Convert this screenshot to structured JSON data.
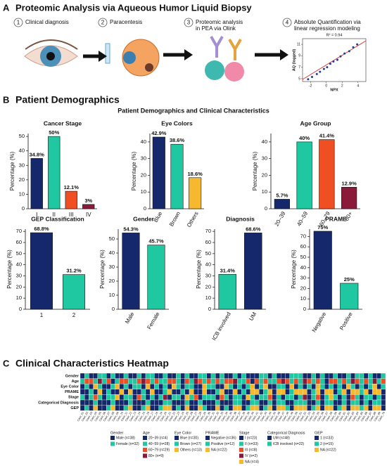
{
  "panel_a": {
    "label": "A",
    "title": "Proteomic Analysis via Aqueous Humor Liquid Biopsy",
    "steps": [
      {
        "number": "1",
        "lines": [
          "Clinical diagnosis"
        ]
      },
      {
        "number": "2",
        "lines": [
          "Paracentesis"
        ]
      },
      {
        "number": "3",
        "lines": [
          "Proteomic analysis",
          "in PEA via Olink"
        ]
      },
      {
        "number": "4",
        "lines": [
          "Absolute Quantification via",
          "linear regression modeling"
        ]
      }
    ]
  },
  "panel_b": {
    "label": "B",
    "title": "Patient Demographics",
    "subtitle": "Patient Demographics and Clinical Characteristics"
  },
  "chart_data": [
    {
      "type": "scatter",
      "annotation": "R² = 0.94",
      "x_label": "NPX",
      "y_label": "AQ (logged)",
      "color": "#1f3a93",
      "line_color": "#e8322b",
      "x": [
        -2.3,
        -1.8,
        -1.2,
        -0.8,
        -0.3,
        0.1,
        0.5,
        0.9,
        1.4,
        1.8,
        2.3,
        2.9,
        3.4,
        3.9
      ],
      "y": [
        4.9,
        5.3,
        5.8,
        6.2,
        6.7,
        7.0,
        7.6,
        8.0,
        8.3,
        8.9,
        9.4,
        9.8,
        10.5,
        11.0
      ],
      "xlim": [
        -3,
        5
      ],
      "ylim": [
        4.5,
        12
      ],
      "xticks": [
        -2,
        0,
        2,
        4
      ],
      "yticks": [
        5,
        7,
        9,
        11
      ]
    },
    {
      "type": "bar",
      "title": "Cancer Stage",
      "y_label": "Percentage (%)",
      "categories": [
        "I",
        "II",
        "III",
        "IV"
      ],
      "values": [
        34.8,
        50,
        12.1,
        3
      ],
      "value_labels": [
        "34.8%",
        "50%",
        "12.1%",
        "3%"
      ],
      "colors": [
        "#14286b",
        "#1fc8a0",
        "#f04e23",
        "#8b1a3a"
      ],
      "ylim": [
        0,
        52
      ],
      "yticks": [
        0,
        10,
        20,
        30,
        40,
        50
      ]
    },
    {
      "type": "bar",
      "title": "Eye Colors",
      "y_label": "Percentage (%)",
      "categories": [
        "Blue",
        "Brown",
        "Others"
      ],
      "values": [
        42.9,
        38.6,
        18.6
      ],
      "value_labels": [
        "42.9%",
        "38.6%",
        "18.6%"
      ],
      "colors": [
        "#14286b",
        "#1fc8a0",
        "#f5b82e"
      ],
      "ylim": [
        0,
        45
      ],
      "yticks": [
        0,
        10,
        20,
        30,
        40
      ]
    },
    {
      "type": "bar",
      "title": "Age Group",
      "y_label": "Percentage (%)",
      "categories": [
        "20–39",
        "40–59",
        "60–79",
        "80+"
      ],
      "values": [
        5.7,
        40,
        41.4,
        12.9
      ],
      "value_labels": [
        "5.7%",
        "40%",
        "41.4%",
        "12.9%"
      ],
      "colors": [
        "#14286b",
        "#1fc8a0",
        "#f04e23",
        "#8b1a3a"
      ],
      "ylim": [
        0,
        45
      ],
      "yticks": [
        0,
        10,
        20,
        30,
        40
      ]
    },
    {
      "type": "bar",
      "title": "GEP Classification",
      "y_label": "Percentage (%)",
      "categories": [
        "1",
        "2"
      ],
      "values": [
        68.8,
        31.2
      ],
      "value_labels": [
        "68.8%",
        "31.2%"
      ],
      "colors": [
        "#14286b",
        "#1fc8a0"
      ],
      "ylim": [
        0,
        72
      ],
      "yticks": [
        0,
        10,
        20,
        30,
        40,
        50,
        60,
        70
      ]
    },
    {
      "type": "bar",
      "title": "Gender",
      "y_label": "Percentage (%)",
      "categories": [
        "Male",
        "Female"
      ],
      "values": [
        54.3,
        45.7
      ],
      "value_labels": [
        "54.3%",
        "45.7%"
      ],
      "colors": [
        "#14286b",
        "#1fc8a0"
      ],
      "ylim": [
        0,
        57
      ],
      "yticks": [
        0,
        10,
        20,
        30,
        40,
        50
      ]
    },
    {
      "type": "bar",
      "title": "Diagnosis",
      "y_label": "Percentage (%)",
      "categories": [
        "ICB involved",
        "UM"
      ],
      "values": [
        31.4,
        68.6
      ],
      "value_labels": [
        "31.4%",
        "68.6%"
      ],
      "colors": [
        "#1fc8a0",
        "#14286b"
      ],
      "ylim": [
        0,
        72
      ],
      "yticks": [
        0,
        10,
        20,
        30,
        40,
        50,
        60,
        70
      ]
    },
    {
      "type": "bar",
      "title": "PRAME",
      "y_label": "Percentage (%)",
      "categories": [
        "Negative",
        "Positive"
      ],
      "values": [
        75,
        25
      ],
      "value_labels": [
        "75%",
        "25%"
      ],
      "colors": [
        "#14286b",
        "#1fc8a0"
      ],
      "ylim": [
        0,
        77
      ],
      "yticks": [
        0,
        10,
        20,
        30,
        40,
        50,
        60,
        70
      ]
    }
  ],
  "heatmap": {
    "label": "C",
    "title": "Clinical Characteristics Heatmap",
    "columns": [
      "Case_01",
      "Case_02",
      "Case_03",
      "Case_04",
      "Case_05",
      "Case_06",
      "Case_07",
      "Case_08",
      "Case_09",
      "Case_10",
      "Case_11",
      "Case_12",
      "Case_13",
      "Case_14",
      "Case_15",
      "Case_16",
      "Case_17",
      "Case_18",
      "Case_19",
      "Case_20",
      "Case_21",
      "Case_22",
      "Case_23",
      "Case_24",
      "Case_25",
      "Case_26",
      "Case_27",
      "Case_28",
      "Case_29",
      "Case_30",
      "Case_31",
      "Case_32",
      "Case_33",
      "Case_34",
      "Case_35",
      "Case_36",
      "Case_37",
      "Case_38",
      "Case_39",
      "Case_40",
      "Case_41",
      "Case_42",
      "Case_43",
      "Case_44",
      "Case_45",
      "Case_46",
      "Case_47",
      "Case_48",
      "Case_49",
      "Case_50",
      "Case_51",
      "Case_52",
      "Case_53",
      "Case_54",
      "Case_55",
      "Case_56",
      "Case_57",
      "Case_58",
      "Case_59",
      "Case_60",
      "Case_61",
      "Case_62",
      "Case_63",
      "Case_64",
      "Case_65",
      "Case_66",
      "Case_67",
      "Case_68",
      "Case_69",
      "Case_70"
    ],
    "rows": [
      {
        "name": "Gender",
        "values": [
          0,
          1,
          0,
          0,
          1,
          1,
          0,
          1,
          0,
          0,
          1,
          0,
          0,
          1,
          0,
          1,
          1,
          0,
          0,
          1,
          0,
          0,
          1,
          0,
          1,
          0,
          0,
          1,
          1,
          0,
          1,
          0,
          1,
          0,
          0,
          1,
          0,
          1,
          0,
          0,
          0,
          1,
          1,
          0,
          1,
          0,
          0,
          0,
          1,
          1,
          1,
          0,
          0,
          1,
          0,
          1,
          0,
          0,
          1,
          0,
          0,
          1,
          0,
          1,
          1,
          0,
          1,
          0,
          0,
          1
        ]
      },
      {
        "name": "Age",
        "values": [
          1,
          2,
          2,
          1,
          3,
          1,
          2,
          0,
          1,
          2,
          2,
          1,
          1,
          2,
          3,
          2,
          1,
          2,
          1,
          1,
          2,
          2,
          1,
          0,
          2,
          1,
          3,
          2,
          1,
          2,
          1,
          2,
          1,
          2,
          2,
          3,
          1,
          1,
          2,
          0,
          2,
          1,
          2,
          1,
          1,
          2,
          3,
          2,
          1,
          2,
          1,
          3,
          2,
          1,
          2,
          1,
          0,
          2,
          2,
          1,
          2,
          1,
          3,
          2,
          1,
          2,
          1,
          3,
          1,
          2
        ]
      },
      {
        "name": "Eye Color",
        "values": [
          0,
          1,
          0,
          2,
          1,
          0,
          0,
          1,
          2,
          0,
          1,
          0,
          1,
          1,
          0,
          2,
          0,
          1,
          0,
          1,
          0,
          2,
          1,
          0,
          1,
          1,
          0,
          0,
          2,
          1,
          1,
          0,
          0,
          2,
          1,
          0,
          1,
          0,
          1,
          2,
          0,
          1,
          2,
          0,
          0,
          1,
          1,
          0,
          2,
          0,
          1,
          0,
          1,
          0,
          2,
          1,
          0,
          1,
          0,
          1,
          0,
          2,
          1,
          0,
          1,
          0,
          1,
          2,
          0,
          1
        ]
      },
      {
        "name": "PRAME",
        "values": [
          0,
          0,
          1,
          0,
          2,
          0,
          1,
          0,
          0,
          2,
          0,
          2,
          0,
          0,
          1,
          0,
          2,
          0,
          0,
          1,
          2,
          0,
          0,
          1,
          0,
          2,
          0,
          0,
          2,
          0,
          0,
          1,
          2,
          0,
          0,
          2,
          0,
          1,
          0,
          2,
          2,
          0,
          1,
          2,
          0,
          2,
          2,
          0,
          1,
          2,
          2,
          2,
          0,
          1,
          2,
          0,
          2,
          2,
          0,
          1,
          2,
          0,
          2,
          2,
          1,
          2,
          0,
          2,
          2,
          0
        ]
      },
      {
        "name": "Stage",
        "values": [
          1,
          0,
          1,
          2,
          1,
          0,
          1,
          1,
          4,
          0,
          1,
          1,
          0,
          2,
          1,
          0,
          1,
          0,
          1,
          3,
          0,
          1,
          1,
          0,
          4,
          1,
          2,
          0,
          1,
          1,
          1,
          0,
          2,
          1,
          0,
          1,
          1,
          0,
          4,
          1,
          0,
          1,
          1,
          2,
          0,
          1,
          0,
          1,
          1,
          0,
          1,
          3,
          0,
          1,
          2,
          0,
          1,
          4,
          1,
          0,
          1,
          0,
          2,
          1,
          0,
          1,
          1,
          0,
          1,
          0
        ]
      },
      {
        "name": "Categorical Diagnosis",
        "values": [
          0,
          0,
          0,
          1,
          0,
          0,
          0,
          1,
          0,
          0,
          0,
          1,
          0,
          0,
          0,
          1,
          0,
          0,
          0,
          1,
          1,
          0,
          0,
          0,
          1,
          0,
          0,
          1,
          0,
          0,
          0,
          1,
          0,
          0,
          0,
          1,
          1,
          0,
          0,
          1,
          1,
          0,
          0,
          1,
          0,
          1,
          1,
          0,
          0,
          1,
          1,
          1,
          0,
          0,
          1,
          0,
          1,
          1,
          0,
          0,
          1,
          0,
          1,
          1,
          0,
          1,
          0,
          1,
          1,
          0
        ]
      },
      {
        "name": "GEP",
        "values": [
          0,
          1,
          0,
          2,
          0,
          0,
          1,
          2,
          0,
          0,
          1,
          2,
          0,
          0,
          1,
          2,
          0,
          0,
          1,
          2,
          2,
          0,
          1,
          0,
          2,
          0,
          0,
          2,
          1,
          0,
          0,
          2,
          0,
          1,
          0,
          2,
          2,
          0,
          1,
          2,
          2,
          0,
          1,
          2,
          0,
          2,
          2,
          1,
          0,
          2,
          2,
          2,
          0,
          1,
          2,
          0,
          2,
          2,
          0,
          1,
          2,
          0,
          2,
          2,
          1,
          2,
          0,
          2,
          2,
          0
        ]
      }
    ],
    "legend": [
      {
        "name": "Gender",
        "entries": [
          {
            "label": "Male (n=38)",
            "color": "#14286b"
          },
          {
            "label": "Female (n=32)",
            "color": "#1fc8a0"
          }
        ]
      },
      {
        "name": "Age",
        "entries": [
          {
            "label": "20~39 (n=4)",
            "color": "#14286b"
          },
          {
            "label": "40~59 (n=28)",
            "color": "#1fc8a0"
          },
          {
            "label": "60~79 (n=29)",
            "color": "#f04e23"
          },
          {
            "label": "80+ (n=9)",
            "color": "#8b1a3a"
          }
        ]
      },
      {
        "name": "Eye Color",
        "entries": [
          {
            "label": "Blue (n=30)",
            "color": "#14286b"
          },
          {
            "label": "Brown (n=27)",
            "color": "#1fc8a0"
          },
          {
            "label": "Others (n=13)",
            "color": "#f5b82e"
          }
        ]
      },
      {
        "name": "PRAME",
        "entries": [
          {
            "label": "Negative (n=36)",
            "color": "#14286b"
          },
          {
            "label": "Positive (n=12)",
            "color": "#1fc8a0"
          },
          {
            "label": "NA (n=22)",
            "color": "#f5b82e"
          }
        ]
      },
      {
        "name": "Stage",
        "entries": [
          {
            "label": "I (n=23)",
            "color": "#14286b"
          },
          {
            "label": "II (n=33)",
            "color": "#1fc8a0"
          },
          {
            "label": "III (n=8)",
            "color": "#f04e23"
          },
          {
            "label": "IV (n=2)",
            "color": "#8b1a3a"
          },
          {
            "label": "NA (n=4)",
            "color": "#f5b82e"
          }
        ]
      },
      {
        "name": "Categorical Diagnosis",
        "entries": [
          {
            "label": "UM (n=48)",
            "color": "#14286b"
          },
          {
            "label": "ICB involved (n=22)",
            "color": "#1fc8a0"
          }
        ]
      },
      {
        "name": "GEP",
        "entries": [
          {
            "label": "1 (n=33)",
            "color": "#14286b"
          },
          {
            "label": "2 (n=15)",
            "color": "#1fc8a0"
          },
          {
            "label": "NA (n=22)",
            "color": "#f5b82e"
          }
        ]
      }
    ]
  }
}
